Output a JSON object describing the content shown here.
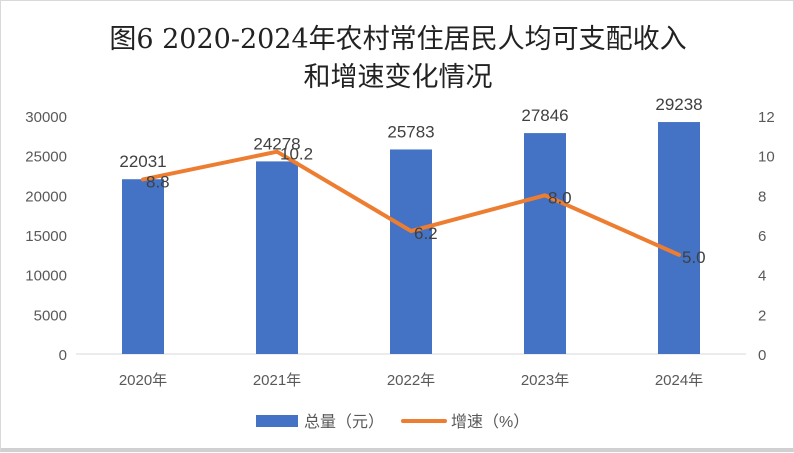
{
  "chart_data": {
    "type": "bar+line",
    "title_line1": "图6   2020-2024年农村常住居民人均可支配收入",
    "title_line2": "和增速变化情况",
    "categories": [
      "2020年",
      "2021年",
      "2022年",
      "2023年",
      "2024年"
    ],
    "series": [
      {
        "name": "总量（元）",
        "type": "bar",
        "axis": "left",
        "values": [
          22031,
          24278,
          25783,
          27846,
          29238
        ],
        "color": "#4472C4"
      },
      {
        "name": "增速（%）",
        "type": "line",
        "axis": "right",
        "values": [
          8.8,
          10.2,
          6.2,
          8.0,
          5.0
        ],
        "labels": [
          "8.8",
          "10.2",
          "6.2",
          "8.0",
          "5.0"
        ],
        "color": "#ED7D31"
      }
    ],
    "y_left": {
      "range": [
        0,
        30000
      ],
      "ticks": [
        0,
        5000,
        10000,
        15000,
        20000,
        25000,
        30000
      ]
    },
    "y_right": {
      "range": [
        0,
        12
      ],
      "ticks": [
        0,
        2,
        4,
        6,
        8,
        10,
        12
      ]
    },
    "grid": false,
    "legend": "bottom"
  }
}
